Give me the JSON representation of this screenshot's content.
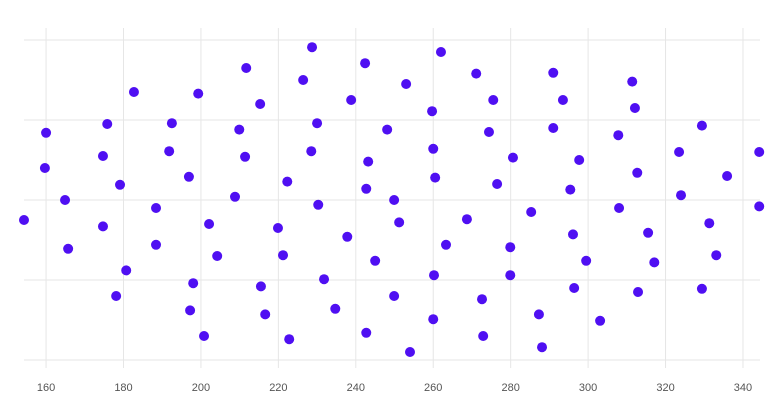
{
  "chart_data": {
    "type": "scatter",
    "color": "#4f0ff2",
    "grid": true,
    "show_ytick_labels": false,
    "xlim": [
      154.3,
      344.4
    ],
    "xticks": [
      160,
      180,
      200,
      220,
      240,
      260,
      280,
      300,
      320,
      340
    ],
    "ylim": [
      -2,
      2
    ],
    "yticks": [
      -2,
      -1,
      0,
      1,
      2
    ],
    "x": [
      154.3,
      160,
      159.7,
      164.9,
      165.7,
      174.7,
      174.7,
      175.8,
      179.1,
      180.7,
      178.1,
      182.7,
      188.4,
      188.4,
      191.8,
      192.5,
      196.9,
      198.0,
      197.2,
      199.3,
      200.8,
      202.1,
      204.2,
      208.8,
      209.9,
      211.4,
      211.7,
      215.3,
      215.5,
      216.6,
      219.9,
      221.2,
      222.3,
      222.8,
      226.4,
      228.5,
      228.7,
      230.0,
      230.3,
      231.8,
      234.7,
      237.8,
      238.8,
      242.4,
      242.7,
      243.2,
      245.0,
      242.7,
      248.1,
      249.9,
      249.9,
      251.2,
      253.0,
      254.0,
      259.7,
      260.0,
      260.5,
      260.2,
      260.0,
      262.0,
      263.3,
      268.7,
      271.1,
      272.6,
      272.9,
      274.4,
      275.5,
      276.5,
      279.9,
      279.9,
      280.6,
      285.3,
      287.3,
      288.1,
      291.0,
      291.0,
      293.5,
      295.4,
      296.1,
      297.7,
      299.5,
      296.4,
      303.1,
      307.8,
      308.0,
      311.4,
      312.1,
      312.7,
      312.9,
      315.5,
      317.1,
      323.5,
      324.0,
      329.4,
      331.3,
      333.1,
      329.4,
      335.9,
      344.2,
      344.2
    ],
    "values": [
      -0.25,
      0.84,
      0.4,
      0,
      -0.61,
      0.55,
      -0.33,
      0.95,
      0.19,
      -0.88,
      -1.2,
      1.35,
      -0.1,
      -0.56,
      0.61,
      0.96,
      0.29,
      -1.04,
      -1.38,
      1.33,
      -1.7,
      -0.3,
      -0.7,
      0.04,
      0.88,
      0.54,
      1.65,
      1.2,
      -1.08,
      -1.43,
      -0.35,
      -0.69,
      0.23,
      -1.74,
      1.5,
      0.61,
      1.91,
      0.96,
      -0.06,
      -0.99,
      -1.36,
      -0.46,
      1.25,
      1.71,
      0.14,
      0.48,
      -0.76,
      -1.66,
      0.88,
      -1.2,
      0,
      -0.28,
      1.45,
      -1.9,
      1.11,
      0.64,
      0.28,
      -0.94,
      -1.49,
      1.85,
      -0.56,
      -0.24,
      1.58,
      -1.24,
      -1.7,
      0.85,
      1.25,
      0.2,
      -0.59,
      -0.94,
      0.53,
      -0.15,
      -1.43,
      -1.84,
      1.59,
      0.9,
      1.25,
      0.13,
      -0.43,
      0.5,
      -0.76,
      -1.1,
      -1.51,
      0.81,
      -0.1,
      1.48,
      1.15,
      0.34,
      -1.15,
      -0.41,
      -0.78,
      0.6,
      0.06,
      -1.11,
      -0.29,
      -0.69,
      0.93,
      0.3,
      0.6,
      -0.08
    ]
  }
}
